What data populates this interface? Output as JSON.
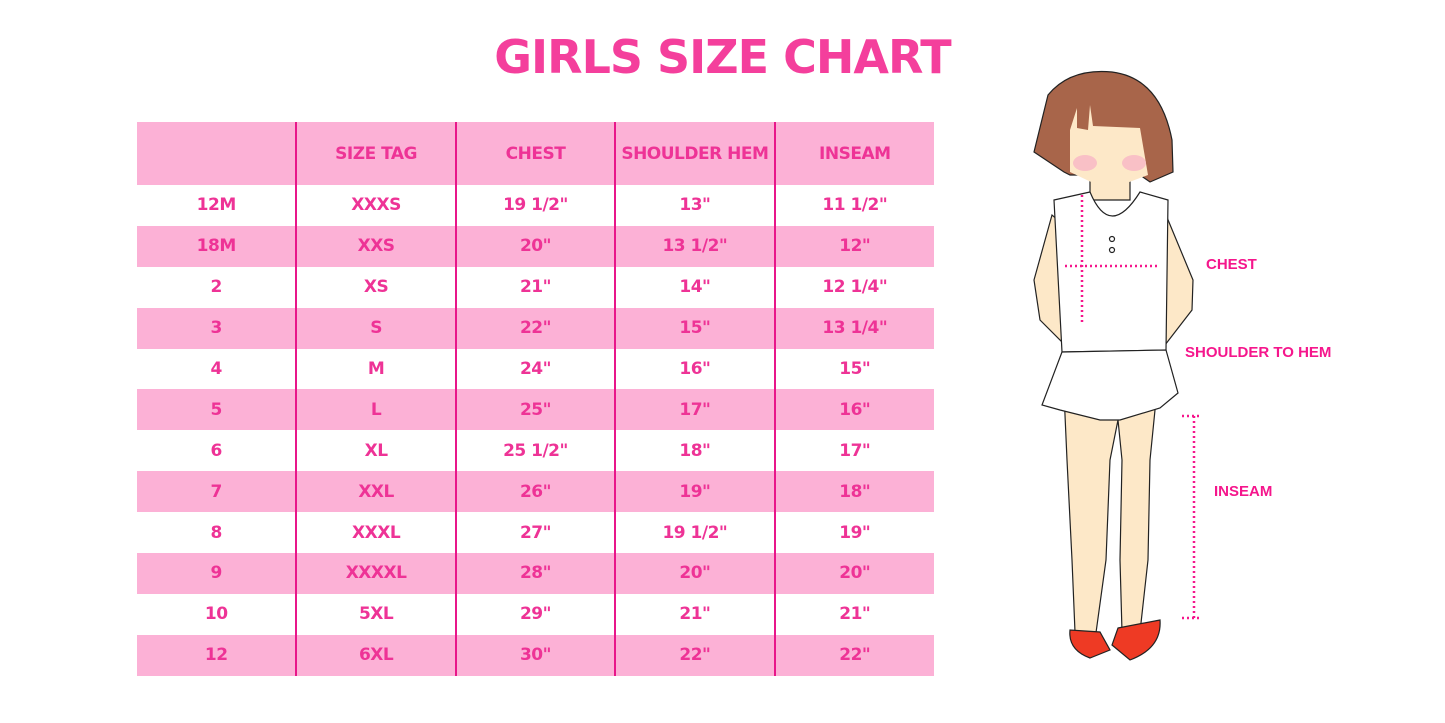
{
  "title": "GIRLS SIZE CHART",
  "table": {
    "headers": [
      "",
      "SIZE TAG",
      "CHEST",
      "SHOULDER HEM",
      "INSEAM"
    ],
    "rows": [
      [
        "12M",
        "XXXS",
        "19 1/2\"",
        "13\"",
        "11 1/2\""
      ],
      [
        "18M",
        "XXS",
        "20\"",
        "13 1/2\"",
        "12\""
      ],
      [
        "2",
        "XS",
        "21\"",
        "14\"",
        "12 1/4\""
      ],
      [
        "3",
        "S",
        "22\"",
        "15\"",
        "13 1/4\""
      ],
      [
        "4",
        "M",
        "24\"",
        "16\"",
        "15\""
      ],
      [
        "5",
        "L",
        "25\"",
        "17\"",
        "16\""
      ],
      [
        "6",
        "XL",
        "25 1/2\"",
        "18\"",
        "17\""
      ],
      [
        "7",
        "XXL",
        "26\"",
        "19\"",
        "18\""
      ],
      [
        "8",
        "XXXL",
        "27\"",
        "19 1/2\"",
        "19\""
      ],
      [
        "9",
        "XXXXL",
        "28\"",
        "20\"",
        "20\""
      ],
      [
        "10",
        "5XL",
        "29\"",
        "21\"",
        "21\""
      ],
      [
        "12",
        "6XL",
        "30\"",
        "22\"",
        "22\""
      ]
    ]
  },
  "illustration": {
    "labels": {
      "chest": "CHEST",
      "shoulder": "SHOULDER TO HEM",
      "inseam": "INSEAM"
    }
  },
  "colors": {
    "accent": "#ee3396",
    "row_pink": "#fcb1d6",
    "divider": "#e8168a",
    "hair": "#a8654a",
    "skin": "#fde8c8",
    "shoes": "#ee3a24"
  }
}
